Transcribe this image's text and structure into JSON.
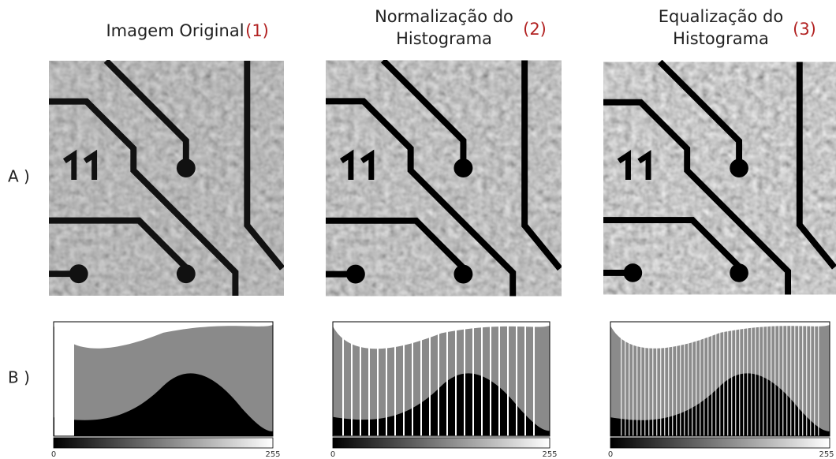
{
  "columns": [
    {
      "title_lines": [
        "Imagem Original"
      ],
      "number": "(1)"
    },
    {
      "title_lines": [
        "Normalização do",
        "Histograma"
      ],
      "number": "(2)"
    },
    {
      "title_lines": [
        "Equalização do",
        "Histograma"
      ],
      "number": "(3)"
    }
  ],
  "rows": [
    {
      "label": "A )"
    },
    {
      "label": "B )"
    }
  ],
  "histograms": [
    {
      "axis_start": "0",
      "axis_end": "255"
    },
    {
      "axis_start": "0",
      "axis_end": "255"
    },
    {
      "axis_start": "0",
      "axis_end": "255"
    }
  ]
}
